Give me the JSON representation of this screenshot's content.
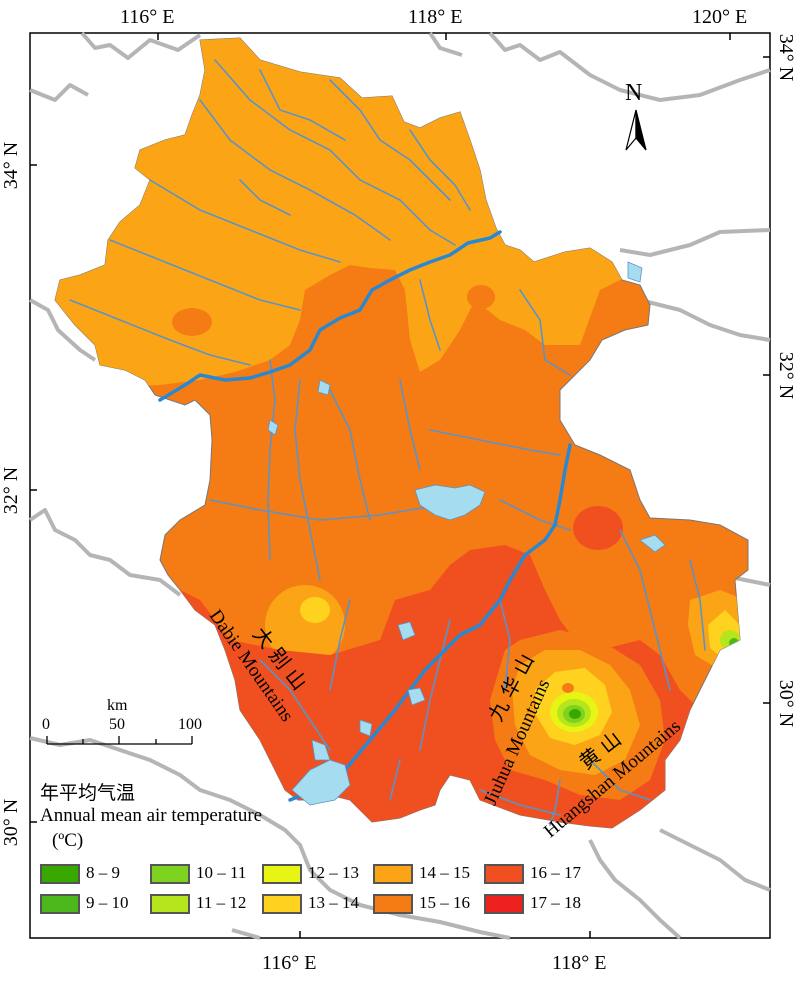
{
  "map": {
    "axis_labels": {
      "top": [
        "116° E",
        "118° E",
        "120° E"
      ],
      "bottom": [
        "116° E",
        "118° E"
      ],
      "left": [
        "34° N",
        "32° N",
        "30° N"
      ],
      "right": [
        "34° N",
        "32° N",
        "30° N"
      ]
    },
    "north_label": "N",
    "mountain_labels": {
      "dabie_cn": "大 别 山",
      "dabie_en": "Dabie Mountains",
      "jiuhua_cn": "九 华 山",
      "jiuhua_en": "Jiuhua Mountains",
      "huangshan_cn": "黄 山",
      "huangshan_en": "Huangshan Mountains"
    },
    "scale_bar": {
      "unit": "km",
      "ticks": [
        "0",
        "50",
        "100"
      ]
    },
    "legend": {
      "title_cn": "年平均气温",
      "title_en": "Annual mean air temperature",
      "unit": "(ºC)",
      "classes": [
        {
          "label": "8 – 9",
          "color": "#38a800"
        },
        {
          "label": "9 – 10",
          "color": "#4cb81c"
        },
        {
          "label": "10 – 11",
          "color": "#7ed321"
        },
        {
          "label": "11 – 12",
          "color": "#b5e61d"
        },
        {
          "label": "12 – 13",
          "color": "#e8f514"
        },
        {
          "label": "13 – 14",
          "color": "#ffd21f"
        },
        {
          "label": "14 – 15",
          "color": "#fba516"
        },
        {
          "label": "15 – 16",
          "color": "#f57b14"
        },
        {
          "label": "16 – 17",
          "color": "#f05020"
        },
        {
          "label": "17 – 18",
          "color": "#ee2121"
        }
      ]
    },
    "colors": {
      "water": "#a6dcf0",
      "river": "#5b93c8",
      "yangtze": "#2a88d0",
      "border": "#b5b5b5"
    }
  }
}
